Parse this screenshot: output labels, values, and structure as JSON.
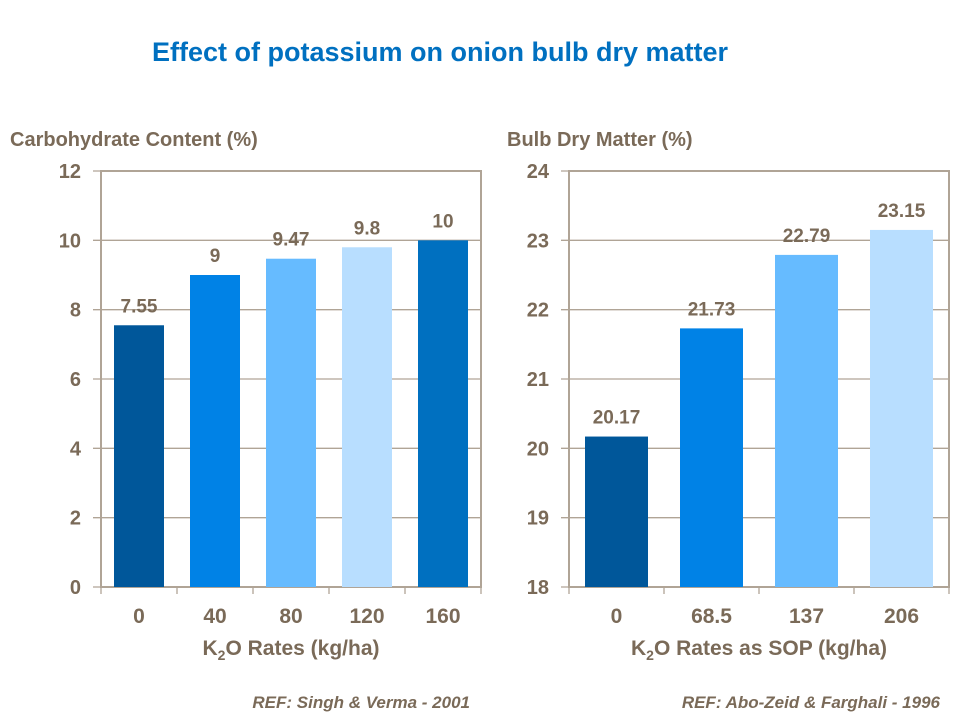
{
  "title": "Effect of potassium on onion bulb dry matter",
  "chart_data": [
    {
      "type": "bar",
      "ylabel": "Carbohydrate Content (%)",
      "xlabel": "K2O Rates (kg/ha)",
      "xlabel_parts": {
        "pre": "K",
        "sub": "2",
        "post": "O Rates (kg/ha)"
      },
      "categories": [
        "0",
        "40",
        "80",
        "120",
        "160"
      ],
      "values": [
        7.55,
        9,
        9.47,
        9.8,
        10
      ],
      "data_labels": [
        "7.55",
        "9",
        "9.47",
        "9.8",
        "10"
      ],
      "colors": [
        "#00579A",
        "#0082E6",
        "#66BBFF",
        "#B8DEFF",
        "#0070C0"
      ],
      "ylim": [
        0,
        12
      ],
      "yticks": [
        "0",
        "2",
        "4",
        "6",
        "8",
        "10",
        "12"
      ],
      "grid": true,
      "reference": "REF: Singh & Verma -  2001"
    },
    {
      "type": "bar",
      "ylabel": "Bulb Dry Matter (%)",
      "xlabel": "K2O Rates as SOP (kg/ha)",
      "xlabel_parts": {
        "pre": "K",
        "sub": "2",
        "post": "O Rates as SOP (kg/ha)"
      },
      "categories": [
        "0",
        "68.5",
        "137",
        "206"
      ],
      "values": [
        20.17,
        21.73,
        22.79,
        23.15
      ],
      "data_labels": [
        "20.17",
        "21.73",
        "22.79",
        "23.15"
      ],
      "colors": [
        "#00579A",
        "#0082E6",
        "#66BBFF",
        "#B8DEFF"
      ],
      "ylim": [
        18,
        24
      ],
      "yticks": [
        "18",
        "19",
        "20",
        "21",
        "22",
        "23",
        "24"
      ],
      "grid": true,
      "reference": "REF: Abo-Zeid & Farghali - 1996"
    }
  ]
}
